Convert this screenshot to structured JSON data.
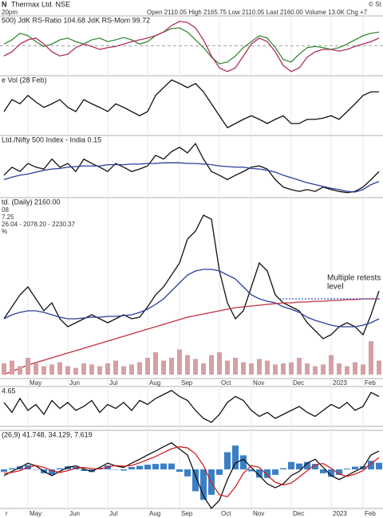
{
  "header": {
    "symbol": "N",
    "name": "Thermax Ltd. NSE",
    "time": "20pm",
    "quote": "Open 2110.05 High 2165.75 Low 2110.05 Last 2160.00 Volume 13.0K Chg +7",
    "credit": "© St"
  },
  "chart_data": [
    {
      "type": "line",
      "title": "500) JdK RS-Ratio 104.68 JdK RS-Mom 99.72",
      "ylim": [
        95,
        105
      ],
      "reference_line": 100,
      "series": [
        {
          "color": "#3a8a3a",
          "values": [
            100.3,
            101,
            102.1,
            101.7,
            100.7,
            99.9,
            100.3,
            101,
            101.3,
            100.7,
            100.3,
            101,
            101.3,
            100.7,
            101,
            101.4,
            101,
            100.3,
            100.7,
            101.7,
            102.3,
            102.9,
            103,
            102.3,
            101,
            99.7,
            98.1,
            97,
            97.3,
            98.3,
            99.7,
            100.7,
            101.7,
            101.3,
            99.7,
            97.7,
            97.3,
            98.6,
            99.7,
            99.9,
            99.7,
            99.4,
            99.7,
            100.3,
            101,
            101.7,
            102.1,
            102.3
          ]
        },
        {
          "color": "#b0305a",
          "values": [
            98.3,
            99,
            100.3,
            101,
            101.3,
            100.3,
            99,
            98.3,
            98.6,
            99.7,
            100.3,
            99.9,
            99.4,
            99.7,
            99.9,
            100.3,
            100.7,
            101,
            101.3,
            101.7,
            102.3,
            103.4,
            104.1,
            103.9,
            103,
            101,
            98.3,
            96.3,
            95.7,
            96.3,
            98.3,
            100.3,
            101.3,
            100.7,
            99,
            96.7,
            95.7,
            96.3,
            98.1,
            99,
            99.4,
            99.4,
            99.1,
            99.4,
            99.9,
            100.3,
            100.7,
            101.3
          ]
        }
      ]
    },
    {
      "type": "line",
      "title": "e Vol (28 Feb)",
      "ylim": [
        0,
        100
      ],
      "series": [
        {
          "color": "#111111",
          "values": [
            40,
            60,
            53,
            67,
            56,
            47,
            53,
            60,
            47,
            40,
            60,
            53,
            47,
            40,
            53,
            47,
            40,
            33,
            40,
            67,
            80,
            93,
            87,
            80,
            87,
            73,
            53,
            33,
            13,
            20,
            27,
            33,
            27,
            20,
            27,
            33,
            20,
            20,
            27,
            27,
            29,
            33,
            27,
            40,
            53,
            67,
            73,
            73
          ]
        }
      ]
    },
    {
      "type": "line",
      "title": "Ltd./Nifty 500 Index - India 0.15",
      "ylim": [
        0.1,
        0.2
      ],
      "series": [
        {
          "color": "#111111",
          "values": [
            0.136,
            0.149,
            0.142,
            0.155,
            0.149,
            0.146,
            0.162,
            0.149,
            0.155,
            0.142,
            0.162,
            0.155,
            0.149,
            0.142,
            0.155,
            0.149,
            0.142,
            0.146,
            0.151,
            0.168,
            0.162,
            0.174,
            0.181,
            0.172,
            0.187,
            0.162,
            0.142,
            0.136,
            0.129,
            0.136,
            0.142,
            0.149,
            0.151,
            0.146,
            0.129,
            0.117,
            0.113,
            0.11,
            0.113,
            0.11,
            0.117,
            0.113,
            0.11,
            0.108,
            0.11,
            0.117,
            0.129,
            0.142
          ]
        },
        {
          "color": "#2a3f9a",
          "values": [
            0.129,
            0.133,
            0.136,
            0.138,
            0.141,
            0.144,
            0.146,
            0.147,
            0.149,
            0.15,
            0.151,
            0.151,
            0.151,
            0.153,
            0.153,
            0.153,
            0.154,
            0.154,
            0.155,
            0.155,
            0.156,
            0.156,
            0.156,
            0.155,
            0.155,
            0.154,
            0.153,
            0.151,
            0.15,
            0.149,
            0.149,
            0.147,
            0.146,
            0.144,
            0.141,
            0.136,
            0.132,
            0.128,
            0.124,
            0.121,
            0.118,
            0.115,
            0.113,
            0.11,
            0.109,
            0.113,
            0.121,
            0.126
          ]
        }
      ]
    },
    {
      "type": "line",
      "title": "td. (Daily) 2160.00",
      "labels": [
        {
          "text": "08",
          "color": "#2a3f9a"
        },
        {
          "text": "7.25",
          "color": "#c03040"
        },
        {
          "text": "26.04 - 2078.20 - 2230.37",
          "color": "#888888"
        },
        {
          "text": "%",
          "color": "#222222"
        }
      ],
      "ylim": [
        1845,
        2526
      ],
      "categories": [
        null,
        null,
        null,
        "May",
        null,
        null,
        null,
        null,
        "Jun",
        null,
        null,
        null,
        null,
        "Jul",
        null,
        null,
        null,
        null,
        "Aug",
        null,
        null,
        null,
        "Sep",
        null,
        null,
        null,
        null,
        "Oct",
        null,
        null,
        null,
        "Nov",
        null,
        null,
        null,
        null,
        "Dec",
        null,
        null,
        null,
        null,
        "2023",
        null,
        null,
        null,
        "Feb",
        null,
        null
      ],
      "annotation": {
        "text": [
          "Multiple retests",
          "level"
        ],
        "color": "#3355cc",
        "y": 2145
      },
      "series": [
        {
          "color": "#111111",
          "values": [
            2070,
            2115,
            2160,
            2190,
            2145,
            2100,
            2130,
            2070,
            2040,
            2055,
            2070,
            2085,
            2070,
            2055,
            2070,
            2085,
            2070,
            2076,
            2115,
            2160,
            2190,
            2235,
            2280,
            2370,
            2400,
            2460,
            2445,
            2250,
            2130,
            2070,
            2100,
            2190,
            2280,
            2250,
            2160,
            2130,
            2115,
            2100,
            2055,
            2025,
            1995,
            2010,
            2040,
            2055,
            2040,
            2010,
            2085,
            2175
          ]
        },
        {
          "color": "#2a3f9a",
          "values": [
            2070,
            2085,
            2094,
            2100,
            2100,
            2094,
            2085,
            2076,
            2070,
            2070,
            2073,
            2076,
            2076,
            2079,
            2079,
            2082,
            2085,
            2094,
            2106,
            2124,
            2145,
            2175,
            2205,
            2235,
            2250,
            2256,
            2256,
            2250,
            2235,
            2220,
            2190,
            2160,
            2145,
            2136,
            2130,
            2115,
            2106,
            2094,
            2076,
            2064,
            2055,
            2046,
            2040,
            2040,
            2040,
            2046,
            2055,
            2070
          ]
        },
        {
          "color": "#c03040",
          "values": [
            1860,
            1872,
            1884,
            1896,
            1905,
            1914,
            1923,
            1932,
            1941,
            1950,
            1959,
            1968,
            1977,
            1986,
            1995,
            2004,
            2013,
            2022,
            2031,
            2040,
            2049,
            2058,
            2067,
            2076,
            2082,
            2088,
            2094,
            2100,
            2106,
            2112,
            2115,
            2118,
            2121,
            2124,
            2127,
            2130,
            2130,
            2133,
            2133,
            2136,
            2136,
            2139,
            2139,
            2142,
            2142,
            2145,
            2145,
            2145
          ]
        }
      ]
    },
    {
      "type": "bar",
      "ylim": [
        0,
        100
      ],
      "color": "#d4a0a4",
      "values": [
        20,
        25,
        15,
        30,
        20,
        15,
        18,
        22,
        15,
        12,
        20,
        18,
        15,
        20,
        25,
        15,
        18,
        22,
        30,
        40,
        25,
        30,
        45,
        35,
        28,
        20,
        35,
        40,
        25,
        30,
        22,
        20,
        28,
        25,
        18,
        20,
        22,
        30,
        20,
        15,
        18,
        35,
        20,
        15,
        22,
        18,
        60,
        25
      ]
    },
    {
      "type": "line",
      "title": "4.65",
      "ylim": [
        -10,
        10
      ],
      "series": [
        {
          "color": "#111111",
          "values": [
            2,
            -3,
            4,
            -2,
            1,
            -4,
            3,
            -1,
            2,
            -2,
            0,
            3,
            -3,
            1,
            -1,
            2,
            -2,
            3,
            1,
            4,
            6,
            8,
            5,
            3,
            -2,
            -6,
            -8,
            -4,
            2,
            5,
            3,
            -2,
            -5,
            -3,
            -6,
            -4,
            -2,
            0,
            -3,
            -5,
            -2,
            1,
            -1,
            2,
            -2,
            0,
            7,
            5
          ]
        }
      ]
    },
    {
      "type": "line",
      "title": "(26,9) 41.748, 34.129, 7.619",
      "ylim": [
        -100,
        100
      ],
      "categories": [
        "r",
        null,
        null,
        "May",
        null,
        null,
        null,
        null,
        "Jun",
        null,
        null,
        null,
        null,
        "Jul",
        null,
        null,
        null,
        null,
        "Aug",
        null,
        null,
        null,
        "Sep",
        null,
        null,
        null,
        null,
        "Oct",
        null,
        null,
        null,
        "Nov",
        null,
        null,
        null,
        null,
        "Dec",
        null,
        null,
        null,
        null,
        "2023",
        null,
        null,
        null,
        "Feb",
        null,
        null
      ],
      "series": [
        {
          "type": "bar",
          "color": "#3a7fc4",
          "values": [
            -6,
            3,
            8,
            11,
            -1,
            -10,
            -13,
            3,
            8,
            6,
            -4,
            -7,
            4,
            10,
            -1,
            -3,
            6,
            9,
            12,
            14,
            15,
            15,
            -6,
            -18,
            -56,
            -78,
            -65,
            -14,
            44,
            61,
            36,
            -5,
            -21,
            -22,
            -14,
            3,
            19,
            15,
            19,
            14,
            -10,
            -19,
            -14,
            2,
            7,
            8,
            22,
            17
          ]
        },
        {
          "color": "#111111",
          "values": [
            -16,
            -5,
            5,
            16,
            9,
            -5,
            -16,
            -5,
            5,
            9,
            1,
            -5,
            5,
            16,
            9,
            5,
            16,
            26,
            37,
            47,
            58,
            68,
            52,
            37,
            -16,
            -68,
            -100,
            -79,
            -26,
            16,
            26,
            5,
            -16,
            -37,
            -47,
            -37,
            -16,
            -5,
            16,
            26,
            5,
            -16,
            -26,
            -16,
            -5,
            5,
            37,
            47
          ]
        },
        {
          "color": "#d02020",
          "values": [
            -10,
            -8,
            -3,
            5,
            10,
            5,
            -3,
            -8,
            -3,
            3,
            5,
            2,
            1,
            6,
            10,
            8,
            10,
            17,
            25,
            33,
            43,
            53,
            58,
            55,
            40,
            10,
            -35,
            -65,
            -70,
            -45,
            -10,
            10,
            5,
            -15,
            -33,
            -40,
            -35,
            -20,
            -3,
            12,
            15,
            3,
            -12,
            -18,
            -12,
            -3,
            15,
            30
          ]
        }
      ]
    }
  ]
}
